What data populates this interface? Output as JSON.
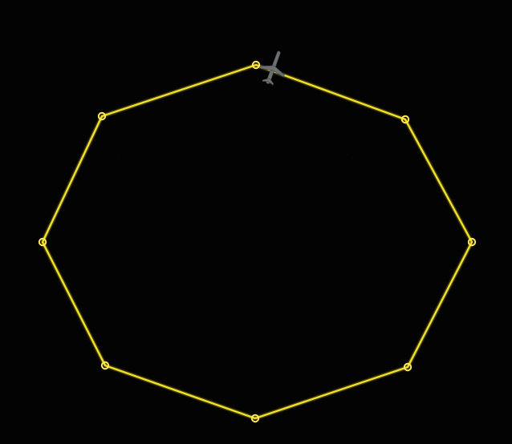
{
  "map": {
    "background_color": "#030303",
    "route_color": "#f2e12a",
    "route_glow_color": "#ffe95a",
    "aircraft_color": "#6b7073",
    "aircraft_icon": "airplane-icon",
    "waypoint_icon": "waypoint-circle-icon"
  }
}
